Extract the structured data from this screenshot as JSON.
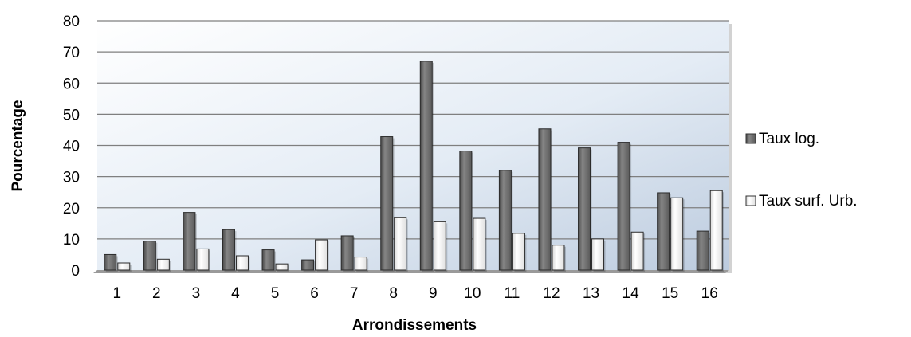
{
  "chart_data": {
    "type": "bar",
    "xlabel": "Arrondissements",
    "ylabel": "Pourcentage",
    "ylim": [
      0,
      80
    ],
    "yticks": [
      "0",
      "10",
      "20",
      "30",
      "40",
      "50",
      "60",
      "70",
      "80"
    ],
    "categories": [
      "1",
      "2",
      "3",
      "4",
      "5",
      "6",
      "7",
      "8",
      "9",
      "10",
      "11",
      "12",
      "13",
      "14",
      "15",
      "16"
    ],
    "grid": true,
    "legend_position": "right",
    "series": [
      {
        "name": "Taux log.",
        "color": "#6b6b6b",
        "values": [
          5,
          9.3,
          18.5,
          13,
          6.5,
          3.3,
          11,
          42.8,
          67,
          38.2,
          32,
          45.3,
          39.2,
          41,
          24.8,
          12.5
        ]
      },
      {
        "name": "Taux surf. Urb.",
        "color": "#f2f2f2",
        "values": [
          2.3,
          3.5,
          6.8,
          4.6,
          2,
          9.7,
          4.2,
          16.8,
          15.5,
          16.6,
          11.8,
          8,
          10,
          12.2,
          23.2,
          25.5
        ]
      }
    ]
  }
}
